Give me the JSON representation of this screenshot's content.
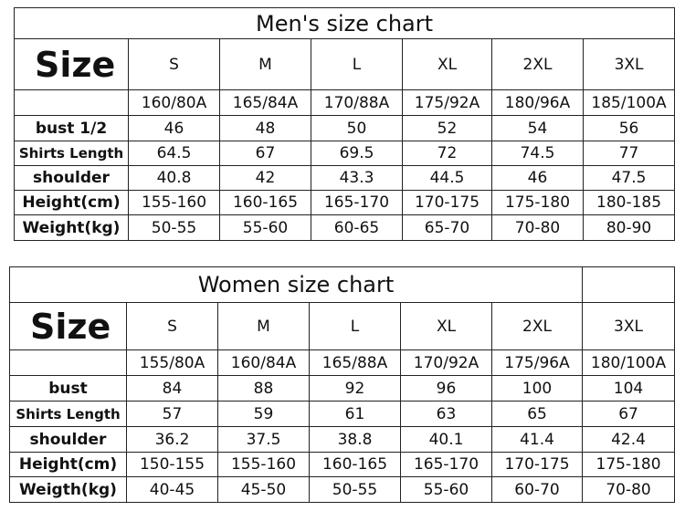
{
  "men": {
    "title": "Men's size chart",
    "size_label": "Size",
    "sizes": [
      "S",
      "M",
      "L",
      "XL",
      "2XL",
      "3XL"
    ],
    "codes": [
      "160/80A",
      "165/84A",
      "170/88A",
      "175/92A",
      "180/96A",
      "185/100A"
    ],
    "rows": [
      {
        "label": "bust 1/2",
        "values": [
          46,
          48,
          50,
          52,
          54,
          56
        ]
      },
      {
        "label": "Shirts Length",
        "values": [
          64.5,
          67,
          69.5,
          72,
          74.5,
          77
        ]
      },
      {
        "label": "shoulder",
        "values": [
          40.8,
          42,
          43.3,
          44.5,
          46,
          47.5
        ]
      },
      {
        "label": "Height(cm)",
        "values": [
          "155-160",
          "160-165",
          "165-170",
          "170-175",
          "175-180",
          "180-185"
        ]
      },
      {
        "label": "Weight(kg)",
        "values": [
          "50-55",
          "55-60",
          "60-65",
          "65-70",
          "70-80",
          "80-90"
        ]
      }
    ]
  },
  "women": {
    "title": "Women size chart",
    "size_label": "Size",
    "sizes": [
      "S",
      "M",
      "L",
      "XL",
      "2XL",
      "3XL"
    ],
    "codes": [
      "155/80A",
      "160/84A",
      "165/88A",
      "170/92A",
      "175/96A",
      "180/100A"
    ],
    "rows": [
      {
        "label": "bust",
        "values": [
          84,
          88,
          92,
          96,
          100,
          104
        ]
      },
      {
        "label": "Shirts Length",
        "values": [
          57,
          59,
          61,
          63,
          65,
          67
        ]
      },
      {
        "label": "shoulder",
        "values": [
          36.2,
          37.5,
          38.8,
          40.1,
          41.4,
          42.4
        ]
      },
      {
        "label": "Height(cm)",
        "values": [
          "150-155",
          "155-160",
          "160-165",
          "165-170",
          "170-175",
          "175-180"
        ]
      },
      {
        "label": "Weigth(kg)",
        "values": [
          "40-45",
          "45-50",
          "50-55",
          "55-60",
          "60-70",
          "70-80"
        ]
      }
    ]
  }
}
